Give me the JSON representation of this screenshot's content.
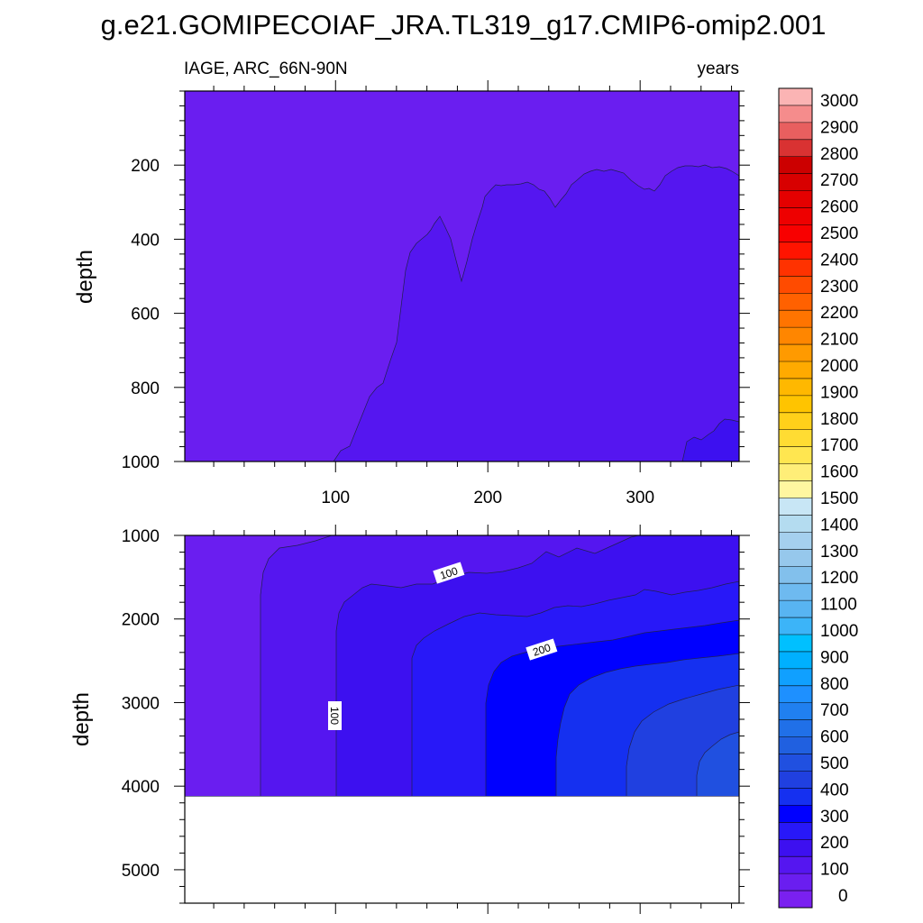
{
  "chart_data": {
    "type": "contour",
    "title": "g.e21.GOMIPECOIAF_JRA.TL319_g17.CMIP6-omip2.001",
    "variable": "IAGE, ARC_66N-90N",
    "units": "years",
    "x_ticks": [
      100,
      200,
      300
    ],
    "xlim": [
      1,
      365
    ],
    "colorbar": {
      "labels": [
        3000,
        2900,
        2800,
        2700,
        2600,
        2500,
        2400,
        2300,
        2200,
        2100,
        2000,
        1900,
        1800,
        1700,
        1600,
        1500,
        1400,
        1300,
        1200,
        1100,
        1000,
        900,
        800,
        700,
        600,
        500,
        400,
        300,
        200,
        100,
        0
      ],
      "colors": [
        "#fbb4b4",
        "#f58c8c",
        "#e85f5f",
        "#d93232",
        "#cc0000",
        "#d80000",
        "#e40000",
        "#ee0000",
        "#f80000",
        "#ff1400",
        "#ff3200",
        "#ff4b00",
        "#ff6100",
        "#ff7400",
        "#ff8600",
        "#ff9a00",
        "#ffaa00",
        "#ffb800",
        "#ffc400",
        "#ffd01a",
        "#ffdc33",
        "#ffe650",
        "#ffee78",
        "#fff6a0",
        "#c8e6f5",
        "#b4dcf0",
        "#a5d0ee",
        "#96c8ec",
        "#82c0ec",
        "#6ebaf0",
        "#58b4f2",
        "#3cb4f8",
        "#00c0ff",
        "#00b0ff",
        "#10a0ff",
        "#1e90ff",
        "#2080f0",
        "#2070e8",
        "#2060e0",
        "#2050e0",
        "#2040e0",
        "#1530f0",
        "#0000ff",
        "#2818f8",
        "#3d10f0",
        "#5516f0",
        "#6a1ef0",
        "#7a20f0"
      ]
    },
    "panels": [
      {
        "name": "upper",
        "ylabel": "depth",
        "y_ticks": [
          200,
          400,
          600,
          800,
          1000
        ],
        "ylim": [
          0,
          1000
        ],
        "filled_levels": [
          "0-100",
          "100-200"
        ],
        "contour_line_level": 100
      },
      {
        "name": "lower",
        "ylabel": "depth",
        "y_ticks": [
          1000,
          2000,
          3000,
          4000,
          5000
        ],
        "ylim": [
          1000,
          5400
        ],
        "data_bottom": 4120,
        "filled_levels": [
          "0-100",
          "100-200",
          "200-300",
          "300-400",
          "400-500"
        ],
        "contour_labels": [
          "100",
          "200",
          "100"
        ]
      }
    ]
  }
}
